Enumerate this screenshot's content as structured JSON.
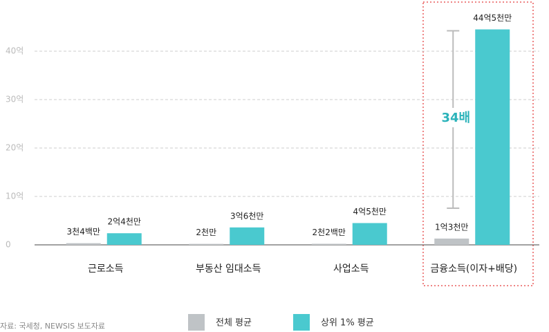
{
  "chart_data": {
    "type": "bar",
    "categories": [
      "근로소득",
      "부동산 임대소득",
      "사업소득",
      "금융소득(이자+배당)"
    ],
    "series": [
      {
        "name": "전체 평균",
        "color": "#bfc3c6",
        "values": [
          0.34,
          0.2,
          0.22,
          1.3
        ],
        "value_labels": [
          "3천4백만",
          "2천만",
          "2천2백만",
          "1억3천만"
        ]
      },
      {
        "name": "상위 1% 평균",
        "color": "#4ac9cf",
        "values": [
          2.4,
          3.6,
          4.5,
          44.5
        ],
        "value_labels": [
          "2억4천만",
          "3억6천만",
          "4억5천만",
          "44억5천만"
        ]
      }
    ],
    "ylim": [
      0,
      50
    ],
    "yticks": [
      0,
      {
        "value": 10,
        "label": "10억"
      },
      {
        "value": 20,
        "label": "20억"
      },
      {
        "value": 30,
        "label": "30억"
      },
      {
        "value": 40,
        "label": "40억"
      }
    ],
    "grid": true,
    "annotation": "34배",
    "source": "자료: 국세청, NEWSIS 보도자료"
  }
}
